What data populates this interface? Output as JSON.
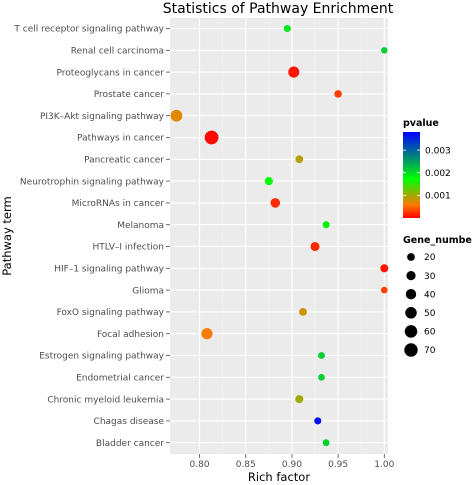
{
  "chart_data": {
    "type": "scatter",
    "title": "Statistics of Pathway Enrichment",
    "xlabel": "Rich factor",
    "ylabel": "Pathway term",
    "xlim": [
      0.768,
      1.004
    ],
    "xticks": [
      0.8,
      0.85,
      0.9,
      0.95,
      1.0
    ],
    "xtick_labels": [
      "0.80",
      "0.85",
      "0.90",
      "0.95",
      "1.00"
    ],
    "grid": true,
    "legend_placement": "right",
    "categories": [
      "T cell receptor signaling pathway",
      "Renal cell carcinoma",
      "Proteoglycans in cancer",
      "Prostate cancer",
      "PI3K–Akt signaling pathway",
      "Pathways in cancer",
      "Pancreatic cancer",
      "Neurotrophin signaling pathway",
      "MicroRNAs in cancer",
      "Melanoma",
      "HTLV–I infection",
      "HIF–1 signaling pathway",
      "Glioma",
      "FoxO signaling pathway",
      "Focal adhesion",
      "Estrogen signaling pathway",
      "Endometrial cancer",
      "Chronic myeloid leukemia",
      "Chagas disease",
      "Bladder cancer"
    ],
    "points": [
      {
        "term": "T cell receptor signaling pathway",
        "rich_factor": 0.895,
        "gene_number": 16,
        "pvalue": 0.0019
      },
      {
        "term": "Renal cell carcinoma",
        "rich_factor": 1.0,
        "gene_number": 13,
        "pvalue": 0.0021
      },
      {
        "term": "Proteoglycans in cancer",
        "rich_factor": 0.902,
        "gene_number": 46,
        "pvalue": 0.0001
      },
      {
        "term": "Prostate cancer",
        "rich_factor": 0.95,
        "gene_number": 19,
        "pvalue": 0.0003
      },
      {
        "term": "PI3K–Akt signaling pathway",
        "rich_factor": 0.775,
        "gene_number": 52,
        "pvalue": 0.0007
      },
      {
        "term": "Pathways in cancer",
        "rich_factor": 0.813,
        "gene_number": 74,
        "pvalue": 5e-05
      },
      {
        "term": "Pancreatic cancer",
        "rich_factor": 0.908,
        "gene_number": 20,
        "pvalue": 0.0009
      },
      {
        "term": "Neurotrophin signaling pathway",
        "rich_factor": 0.875,
        "gene_number": 23,
        "pvalue": 0.0017
      },
      {
        "term": "MicroRNAs in cancer",
        "rich_factor": 0.882,
        "gene_number": 33,
        "pvalue": 0.0002
      },
      {
        "term": "Melanoma",
        "rich_factor": 0.937,
        "gene_number": 16,
        "pvalue": 0.0018
      },
      {
        "term": "HTLV–I infection",
        "rich_factor": 0.925,
        "gene_number": 29,
        "pvalue": 0.0002
      },
      {
        "term": "HIF–1 signaling pathway",
        "rich_factor": 1.0,
        "gene_number": 22,
        "pvalue": 0.0001
      },
      {
        "term": "Glioma",
        "rich_factor": 1.0,
        "gene_number": 14,
        "pvalue": 0.0003
      },
      {
        "term": "FoxO signaling pathway",
        "rich_factor": 0.912,
        "gene_number": 20,
        "pvalue": 0.0008
      },
      {
        "term": "Focal adhesion",
        "rich_factor": 0.808,
        "gene_number": 46,
        "pvalue": 0.0006
      },
      {
        "term": "Estrogen signaling pathway",
        "rich_factor": 0.932,
        "gene_number": 15,
        "pvalue": 0.0021
      },
      {
        "term": "Endometrial cancer",
        "rich_factor": 0.932,
        "gene_number": 14,
        "pvalue": 0.0021
      },
      {
        "term": "Chronic myeloid leukemia",
        "rich_factor": 0.908,
        "gene_number": 22,
        "pvalue": 0.001
      },
      {
        "term": "Chagas disease",
        "rich_factor": 0.928,
        "gene_number": 16,
        "pvalue": 0.0037
      },
      {
        "term": "Bladder cancer",
        "rich_factor": 0.937,
        "gene_number": 15,
        "pvalue": 0.0021
      }
    ],
    "color_legend": {
      "title": "pvalue",
      "range": [
        0.0,
        0.0038
      ],
      "tick_values": [
        0.003,
        0.002,
        0.001
      ],
      "tick_labels": [
        "0.003",
        "0.002",
        "0.001"
      ],
      "colors_low_to_high": [
        "#ff0000",
        "#ff8c00",
        "#00ff00",
        "#0000ff"
      ]
    },
    "size_legend": {
      "title": "Gene_number",
      "values": [
        20,
        30,
        40,
        50,
        60,
        70
      ],
      "labels": [
        "20",
        "30",
        "40",
        "50",
        "60",
        "70"
      ]
    }
  }
}
